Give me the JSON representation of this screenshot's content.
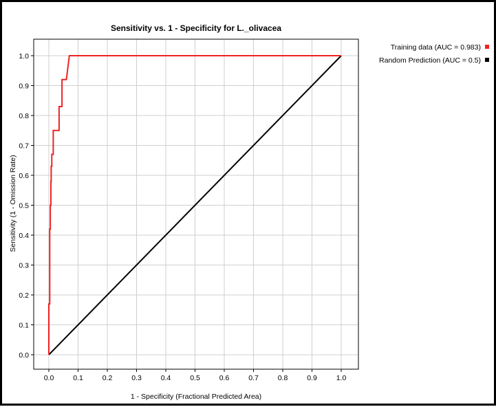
{
  "chart_data": {
    "type": "line",
    "title": "Sensitivity vs. 1 - Specificity for L._olivacea",
    "xlabel": "1 - Specificity  (Fractional Predicted Area)",
    "ylabel": "Sensitivity  (1 - Omission Rate)",
    "xlim": [
      0.0,
      1.0
    ],
    "ylim": [
      0.0,
      1.0
    ],
    "xticks": [
      "0.0",
      "0.1",
      "0.2",
      "0.3",
      "0.4",
      "0.5",
      "0.6",
      "0.7",
      "0.8",
      "0.9",
      "1.0"
    ],
    "yticks": [
      "0.0",
      "0.1",
      "0.2",
      "0.3",
      "0.4",
      "0.5",
      "0.6",
      "0.7",
      "0.8",
      "0.9",
      "1.0"
    ],
    "grid": true,
    "legend_position": "right",
    "series": [
      {
        "name": "Training data (AUC = 0.983)",
        "color": "#ee2222",
        "x": [
          0.0,
          0.0,
          0.003,
          0.003,
          0.005,
          0.005,
          0.007,
          0.007,
          0.008,
          0.008,
          0.01,
          0.01,
          0.015,
          0.015,
          0.02,
          0.02,
          0.035,
          0.035,
          0.045,
          0.045,
          0.06,
          0.06,
          0.07,
          1.0
        ],
        "y": [
          0.0,
          0.17,
          0.17,
          0.42,
          0.42,
          0.5,
          0.5,
          0.58,
          0.58,
          0.63,
          0.63,
          0.67,
          0.67,
          0.75,
          0.75,
          0.75,
          0.75,
          0.83,
          0.83,
          0.92,
          0.92,
          0.92,
          1.0,
          1.0
        ]
      },
      {
        "name": "Random Prediction (AUC = 0.5)",
        "color": "#000000",
        "x": [
          0.0,
          1.0
        ],
        "y": [
          0.0,
          1.0
        ]
      }
    ]
  }
}
